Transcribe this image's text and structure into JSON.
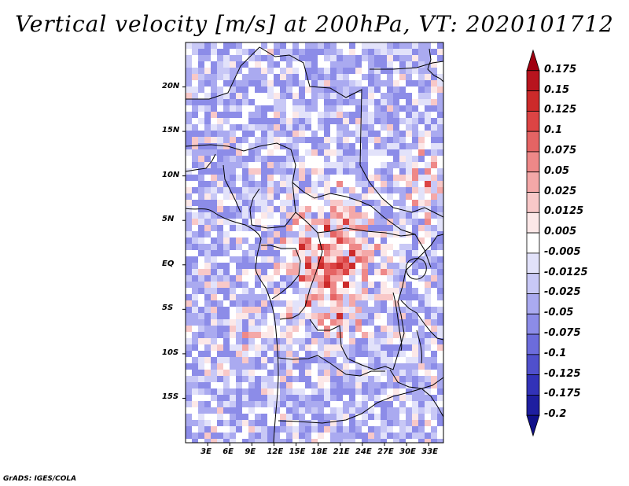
{
  "title": "Vertical velocity [m/s] at 200hPa, VT: 2020101712",
  "footer": "GrADS: IGES/COLA",
  "chart_data": {
    "type": "heatmap",
    "variable": "Vertical velocity",
    "units": "m/s",
    "level": "200hPa",
    "valid_time": "2020101712",
    "lon_range": [
      0,
      35
    ],
    "lat_range": [
      -20,
      25
    ],
    "lon_ticks": [
      "3E",
      "6E",
      "9E",
      "12E",
      "15E",
      "18E",
      "21E",
      "24E",
      "27E",
      "30E",
      "33E"
    ],
    "lon_tick_values": [
      3,
      6,
      9,
      12,
      15,
      18,
      21,
      24,
      27,
      30,
      33
    ],
    "lat_ticks": [
      "20N",
      "15N",
      "10N",
      "5N",
      "EQ",
      "5S",
      "10S",
      "15S"
    ],
    "lat_tick_values": [
      20,
      15,
      10,
      5,
      0,
      -5,
      -10,
      -15
    ],
    "colorbar": {
      "labels": [
        "0.175",
        "0.15",
        "0.125",
        "0.1",
        "0.075",
        "0.05",
        "0.025",
        "0.0125",
        "0.005",
        "-0.005",
        "-0.0125",
        "-0.025",
        "-0.05",
        "-0.075",
        "-0.1",
        "-0.125",
        "-0.175",
        "-0.2"
      ],
      "colors": [
        "#a00010",
        "#b8141e",
        "#cc2a2a",
        "#dc4444",
        "#e56464",
        "#ee8888",
        "#f4a8a8",
        "#f8c8c8",
        "#fce8e8",
        "#ffffff",
        "#e2e2fa",
        "#c8c8f6",
        "#aaaaf0",
        "#8c8ce8",
        "#6c6cdc",
        "#5050cc",
        "#3232b8",
        "#1e1ea0",
        "#10108a"
      ]
    }
  }
}
